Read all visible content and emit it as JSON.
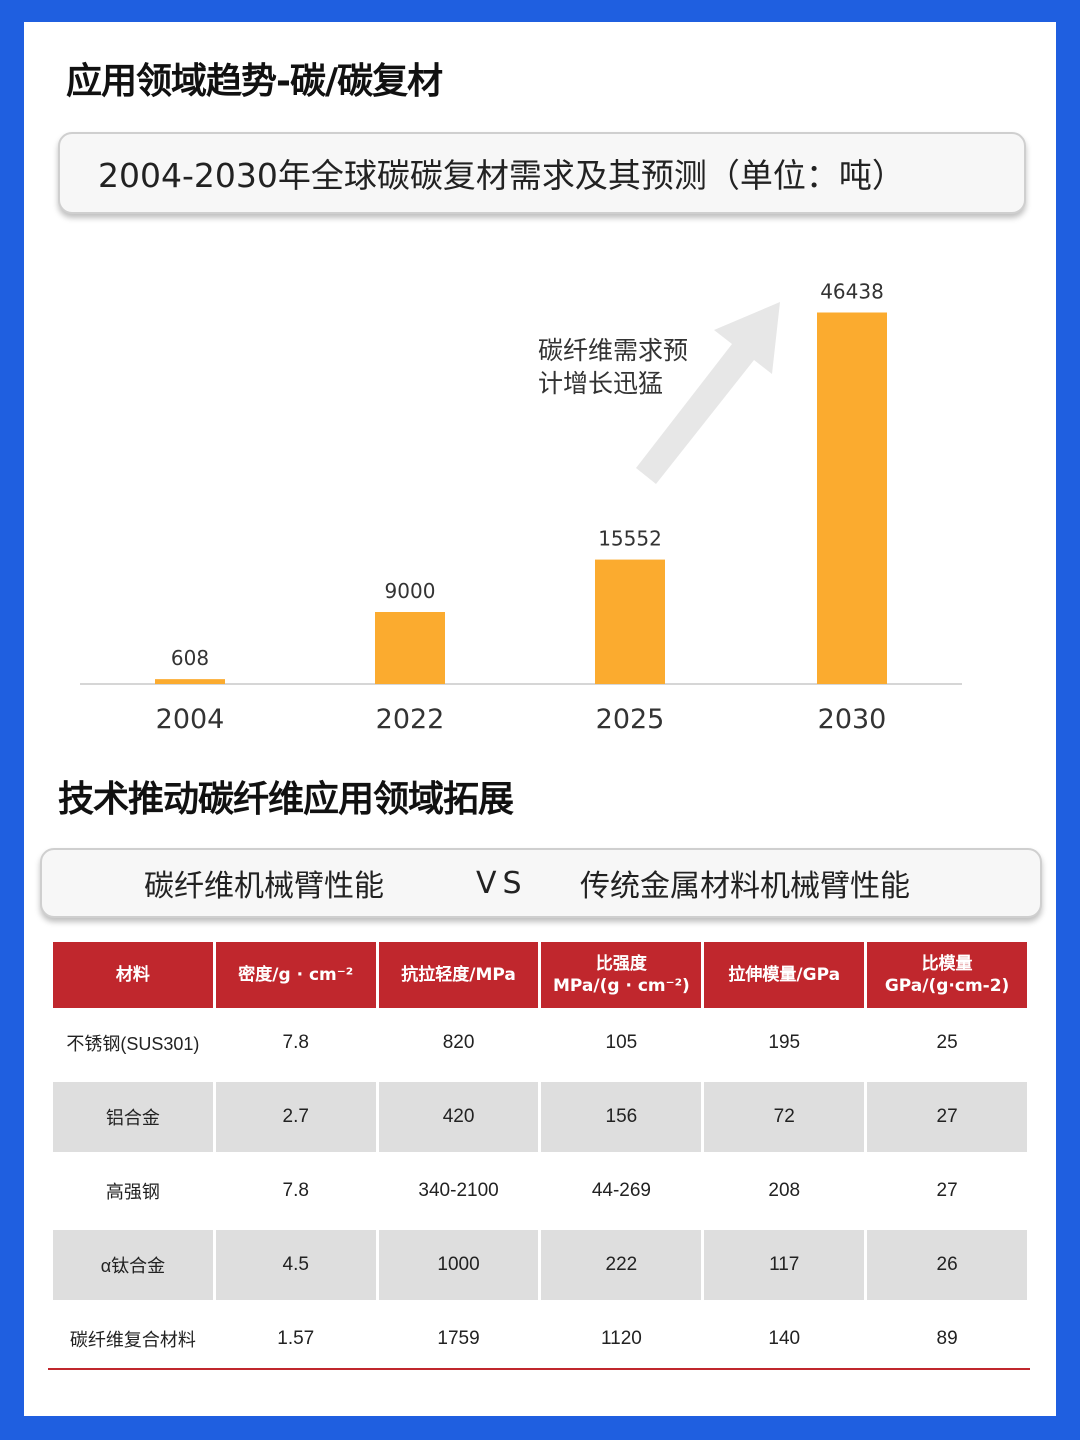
{
  "headings": {
    "section1": "应用领域趋势-碳/碳复材",
    "section2": "技术推动碳纤维应用领域拓展"
  },
  "chart_banner": "2004-2030年全球碳碳复材需求及其预测（单位：吨）",
  "chart_data": {
    "type": "bar",
    "title": "2004-2030年全球碳碳复材需求及其预测（单位：吨）",
    "categories": [
      "2004",
      "2022",
      "2025",
      "2030"
    ],
    "values": [
      608,
      9000,
      15552,
      46438
    ],
    "data_labels": [
      "608",
      "9000",
      "15552",
      "46438"
    ],
    "ylim": [
      0,
      50000
    ],
    "grid": false,
    "bar_color": "#fbab2f",
    "annotation": [
      "碳纤维需求预",
      "计增长迅猛"
    ]
  },
  "compare_banner": {
    "left": "碳纤维机械臂性能",
    "vs": "VS",
    "right": "传统金属材料机械臂性能"
  },
  "table": {
    "headers": [
      [
        "材料"
      ],
      [
        "密度/g · cm⁻²"
      ],
      [
        "抗拉轻度/MPa"
      ],
      [
        "比强度",
        "MPa/(g · cm⁻²)"
      ],
      [
        "拉伸模量/GPa"
      ],
      [
        "比模量",
        "GPa/(g·cm-2)"
      ]
    ],
    "rows": [
      [
        "不锈钢(SUS301)",
        "7.8",
        "820",
        "105",
        "195",
        "25"
      ],
      [
        "铝合金",
        "2.7",
        "420",
        "156",
        "72",
        "27"
      ],
      [
        "高强钢",
        "7.8",
        "340-2100",
        "44-269",
        "208",
        "27"
      ],
      [
        "α钛合金",
        "4.5",
        "1000",
        "222",
        "117",
        "26"
      ],
      [
        "碳纤维复合材料",
        "1.57",
        "1759",
        "1120",
        "140",
        "89"
      ]
    ]
  },
  "colors": {
    "border_blue": "#1f5fe0",
    "bar": "#fbab2f",
    "table_header": "#c0272d",
    "row_shade": "#dedede"
  }
}
